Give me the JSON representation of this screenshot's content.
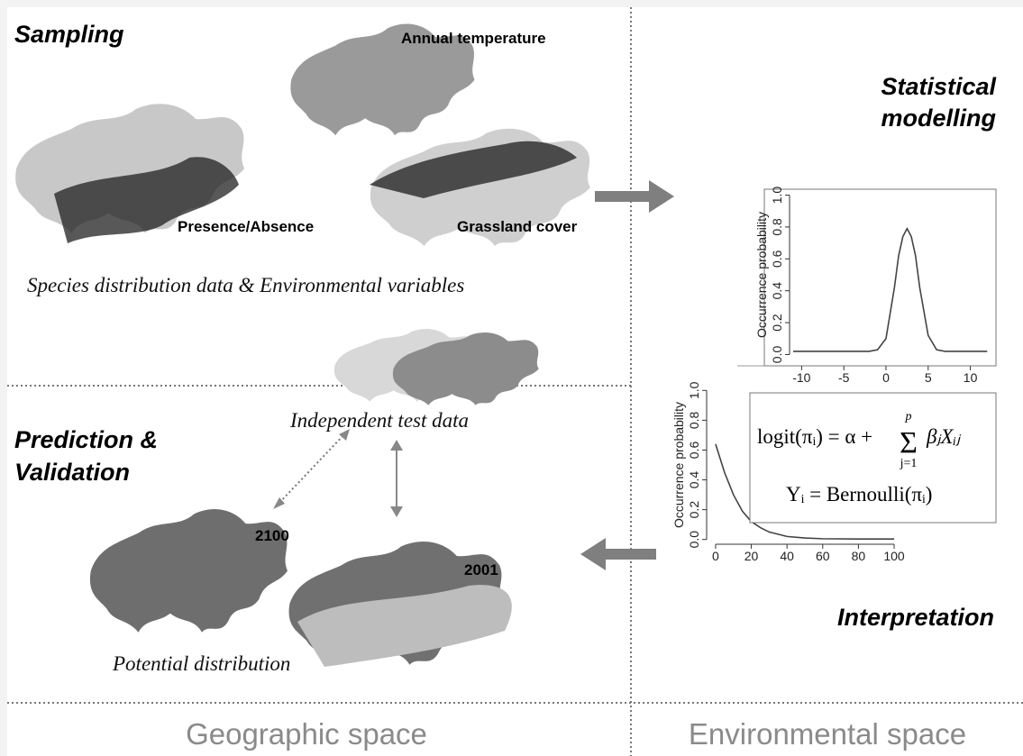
{
  "headings": {
    "sampling": "Sampling",
    "modelling_1": "Statistical",
    "modelling_2": "modelling",
    "prediction_1": "Prediction &",
    "prediction_2": "Validation",
    "interpretation": "Interpretation"
  },
  "map_labels": {
    "temperature": "Annual temperature",
    "presence": "Presence/Absence",
    "grassland": "Grassland cover",
    "year_2100": "2100",
    "year_2001": "2001"
  },
  "captions": {
    "data": "Species distribution data & Environmental variables",
    "test": "Independent test data",
    "potential": "Potential distribution"
  },
  "formula": {
    "lhs": "logit(πᵢ) = α +",
    "sum": "Σ",
    "upper": "p",
    "lower": "j=1",
    "rhs": "βⱼXᵢⱼ",
    "line2": "Yᵢ = Bernoulli(πᵢ)"
  },
  "plots": [
    {
      "y_label": "Occurrence probability",
      "xlim": [
        -11,
        12.5
      ],
      "ylim": [
        -0.02,
        1.02
      ],
      "xticks": [
        -10,
        -5,
        0,
        5,
        10
      ],
      "yticks": [
        {
          "value": 0,
          "label": "0.0"
        },
        0.2,
        0.4,
        0.6,
        0.8,
        {
          "value": 1,
          "label": "1.0"
        }
      ],
      "x": [
        -11,
        -2,
        -1,
        0,
        1,
        1.5,
        2,
        2.5,
        3,
        3.5,
        4,
        5,
        6,
        7,
        12
      ],
      "y": [
        0.02,
        0.02,
        0.03,
        0.1,
        0.42,
        0.62,
        0.74,
        0.79,
        0.74,
        0.62,
        0.42,
        0.12,
        0.03,
        0.02,
        0.02
      ]
    },
    {
      "y_label": "Occurrence probability",
      "xlim": [
        -3,
        102
      ],
      "ylim": [
        -0.02,
        1.02
      ],
      "xticks": [
        0,
        20,
        40,
        60,
        80,
        100
      ],
      "yticks": [
        {
          "value": 0,
          "label": "0.0"
        },
        0.2,
        0.4,
        0.6,
        0.8,
        {
          "value": 1,
          "label": "1.0"
        }
      ],
      "x": [
        0,
        5,
        10,
        15,
        20,
        25,
        30,
        40,
        50,
        60,
        80,
        100
      ],
      "y": [
        0.64,
        0.45,
        0.3,
        0.19,
        0.12,
        0.08,
        0.05,
        0.02,
        0.01,
        0.005,
        0.003,
        0.003
      ]
    }
  ],
  "footer": {
    "left": "Geographic space",
    "right": "Environmental space"
  }
}
